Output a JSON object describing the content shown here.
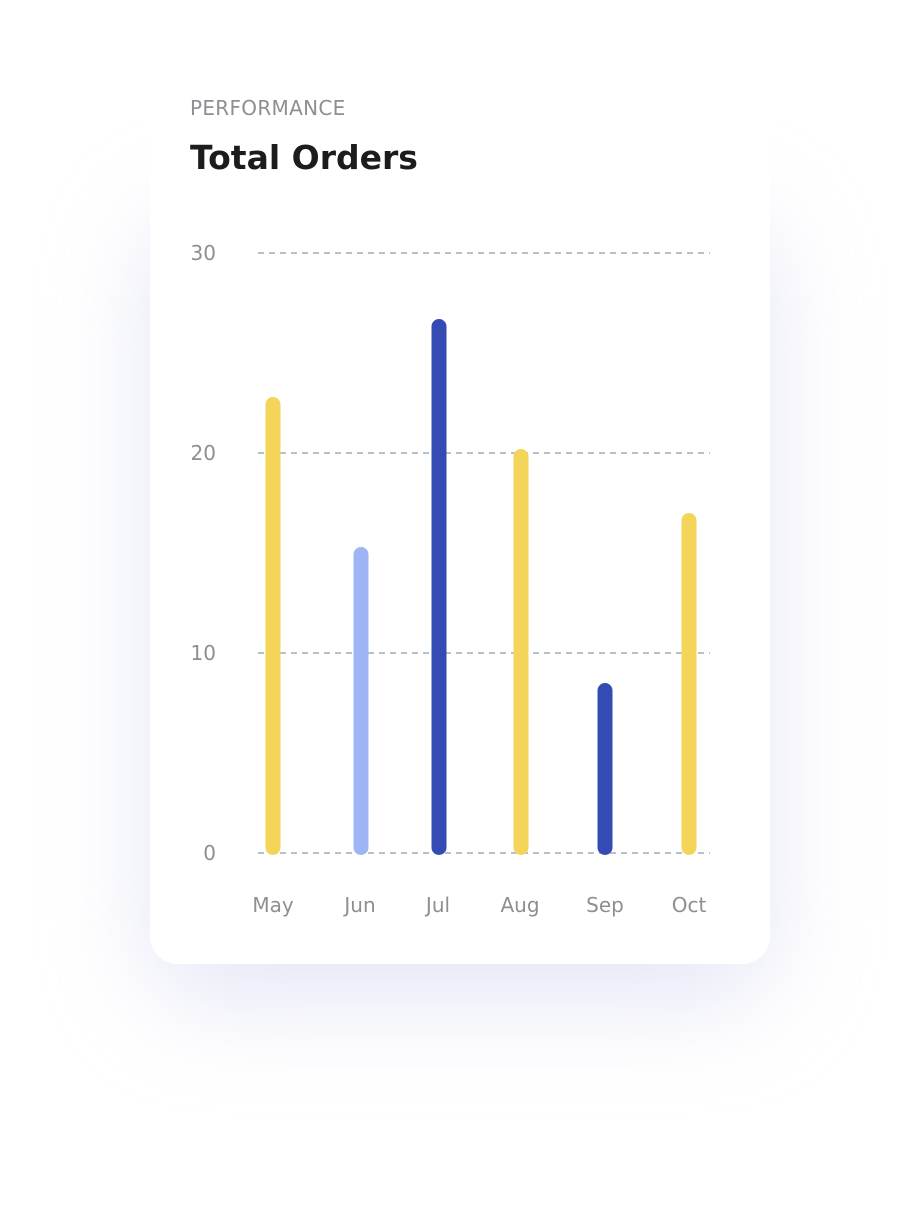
{
  "card": {
    "eyebrow": "PERFORMANCE",
    "title": "Total Orders"
  },
  "colors": {
    "yellow": "#F5D45A",
    "light_blue": "#9DB5F5",
    "dark_blue": "#334BB3",
    "grid": "#8D9AAB",
    "tick_text": "#8E8E93"
  },
  "chart_data": {
    "type": "bar",
    "categories": [
      "May",
      "Jun",
      "Jul",
      "Aug",
      "Sep",
      "Oct"
    ],
    "values": [
      22.8,
      15.3,
      26.7,
      20.2,
      8.5,
      17.0
    ],
    "bar_colors": [
      "#F5D45A",
      "#9DB5F5",
      "#334BB3",
      "#F5D45A",
      "#334BB3",
      "#F5D45A"
    ],
    "title": "Total Orders",
    "xlabel": "",
    "ylabel": "",
    "ylim": [
      0,
      30
    ],
    "yticks": [
      0,
      10,
      20,
      30
    ],
    "grid": true,
    "grid_style": "dashed",
    "legend": "none"
  }
}
